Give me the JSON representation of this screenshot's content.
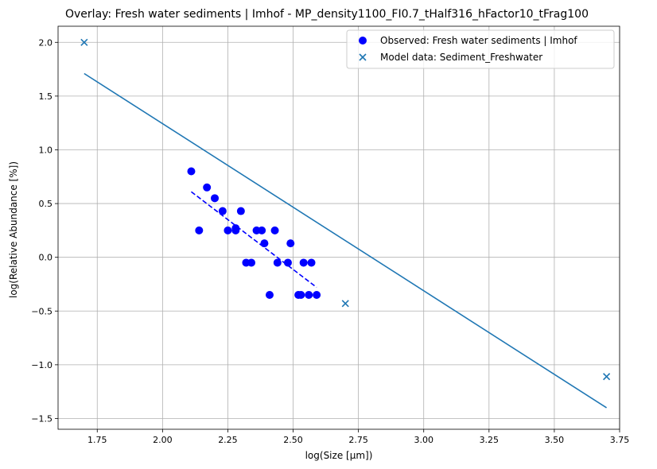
{
  "chart_data": {
    "type": "scatter",
    "title": "Overlay: Fresh water sediments | Imhof - MP_density1100_FI0.7_tHalf316_hFactor10_tFrag100",
    "xlabel": "log(Size [µm])",
    "ylabel": "log(Relative Abundance [%])",
    "xlim": [
      1.6,
      3.75
    ],
    "ylim": [
      -1.6,
      2.15
    ],
    "xticks": [
      1.75,
      2.0,
      2.25,
      2.5,
      2.75,
      3.0,
      3.25,
      3.5,
      3.75
    ],
    "xtick_labels": [
      "1.75",
      "2.00",
      "2.25",
      "2.50",
      "2.75",
      "3.00",
      "3.25",
      "3.50",
      "3.75"
    ],
    "yticks": [
      -1.5,
      -1.0,
      -0.5,
      0.0,
      0.5,
      1.0,
      1.5,
      2.0
    ],
    "ytick_labels": [
      "−1.5",
      "−1.0",
      "−0.5",
      "0.0",
      "0.5",
      "1.0",
      "1.5",
      "2.0"
    ],
    "grid": true,
    "legend_position": "top-right",
    "series": [
      {
        "name": "Observed: Fresh water sediments | Imhof",
        "marker": "circle",
        "color": "#0000ff",
        "points": [
          [
            2.11,
            0.8
          ],
          [
            2.14,
            0.25
          ],
          [
            2.17,
            0.65
          ],
          [
            2.2,
            0.55
          ],
          [
            2.23,
            0.43
          ],
          [
            2.25,
            0.25
          ],
          [
            2.28,
            0.25
          ],
          [
            2.28,
            0.27
          ],
          [
            2.3,
            0.43
          ],
          [
            2.32,
            -0.05
          ],
          [
            2.34,
            -0.05
          ],
          [
            2.36,
            0.25
          ],
          [
            2.38,
            0.25
          ],
          [
            2.39,
            0.13
          ],
          [
            2.41,
            -0.35
          ],
          [
            2.43,
            0.25
          ],
          [
            2.44,
            -0.05
          ],
          [
            2.48,
            -0.05
          ],
          [
            2.49,
            0.13
          ],
          [
            2.52,
            -0.35
          ],
          [
            2.53,
            -0.35
          ],
          [
            2.54,
            -0.05
          ],
          [
            2.56,
            -0.35
          ],
          [
            2.57,
            -0.05
          ],
          [
            2.59,
            -0.35
          ]
        ]
      },
      {
        "name": "Model data: Sediment_Freshwater",
        "marker": "x",
        "color": "#1f77b4",
        "points": [
          [
            1.7,
            2.0
          ],
          [
            2.7,
            -0.43
          ],
          [
            3.7,
            -1.11
          ]
        ]
      }
    ],
    "lines": [
      {
        "style": "dashed",
        "color": "#0000ff",
        "points": [
          [
            2.11,
            0.61
          ],
          [
            2.59,
            -0.28
          ]
        ]
      },
      {
        "style": "solid",
        "color": "#1f77b4",
        "points": [
          [
            1.7,
            1.71
          ],
          [
            3.7,
            -1.4
          ]
        ]
      }
    ]
  }
}
